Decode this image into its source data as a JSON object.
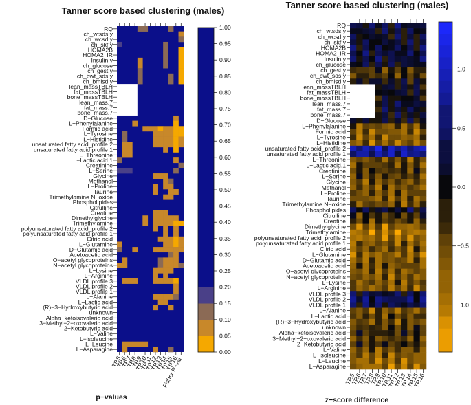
{
  "chart_data": [
    {
      "type": "heatmap",
      "title": "Tanner score based clustering (males)",
      "xlabel": "p−values",
      "columns": [
        "TP.5",
        "TP.6",
        "TP.7",
        "TP.8",
        "TP.9",
        "TP.10",
        "TP.11",
        "TP.12",
        "TP.13",
        "TP.14",
        "TP.15",
        "TP.16",
        "Fisher P−val."
      ],
      "rows": [
        "RQ",
        "ch_wtsds.y",
        "ch_wcsd.y",
        "ch_skf.y",
        "HOMA2B",
        "HOMA2_IR",
        "Insulin.y",
        "ch_glucose",
        "ch_gest.y",
        "ch_bwt_sds.y",
        "ch_bmisd.y",
        "lean_massTBLH",
        "fat_massTBLH",
        "bone_massTBLH",
        "lean_mass.7",
        "fat_mass.7",
        "bone_mass.7",
        "D−Glucose",
        "L−Phenylalanine",
        "Formic acid",
        "L−Tyrosine",
        "L−Histidine",
        "unsaturated fatty acid_profile 2",
        "unsaturated fatty acid profile 1",
        "L−Threonine",
        "L−Lactic acid.1",
        "Creatinine",
        "L−Serine",
        "Glycine",
        "Methanol",
        "L−Proline",
        "Taurine",
        "Trimethylamine N−oxide",
        "Phospholipides",
        "Citrulline",
        "Creatine",
        "Dimethylglycine",
        "Trimethylamine",
        "polyunsaturated fatty acid_profile 2",
        "polyunsaturated fatty acid profile 1",
        "Citric acid",
        "L−Glutamine",
        "D−Glutamic acid",
        "Acetoacetic acid",
        "O−acetyl glycoproteins",
        "N−acetyl glycoproteins",
        "L−Lysine",
        "L−Arginine",
        "VLDL profile 3",
        "VLDL profile 2",
        "VLDL profile 1",
        "L−Alanine",
        "L−Lactic acid",
        "(R)−3−Hydroxybutyric acid",
        "unknown",
        "Alpha−ketoisovaleric acid",
        "3−Methyl−2−oxovaleric acid",
        "2−Ketobutyric acid",
        "L−Valine",
        "L−isoleucine",
        "L−Leucine",
        "L−Asparagine"
      ],
      "color_scale": {
        "breaks": [
          0,
          0.05,
          0.1,
          0.15,
          0.2,
          1.0
        ],
        "colors": [
          "#f5a800",
          "#c8882a",
          "#8b6a55",
          "#4a4088",
          "#0b0f8a"
        ],
        "ticks": [
          "0.00",
          "0.05",
          "0.10",
          "0.15",
          "0.20",
          "0.25",
          "0.30",
          "0.35",
          "0.40",
          "0.45",
          "0.50",
          "0.55",
          "0.60",
          "0.65",
          "0.70",
          "0.75",
          "0.80",
          "0.85",
          "0.90",
          "0.95",
          "1.00"
        ]
      },
      "missing_block": {
        "rows": [
          "lean_massTBLH",
          "fat_massTBLH",
          "bone_massTBLH",
          "lean_mass.7",
          "fat_mass.7",
          "bone_mass.7"
        ],
        "columns": [
          "TP.5",
          "TP.6",
          "TP.7",
          "TP.8"
        ]
      },
      "significant_cells": [
        [
          0,
          "TP.9",
          0.12
        ],
        [
          0,
          "TP.10",
          0.12
        ],
        [
          0,
          "TP.15",
          0.12
        ],
        [
          1,
          "Fisher P−val.",
          0.08
        ],
        [
          2,
          "Fisher P−val.",
          0.12
        ],
        [
          3,
          "TP.5",
          0.15
        ],
        [
          3,
          "TP.14",
          0.12
        ],
        [
          4,
          "TP.14",
          0.1
        ],
        [
          4,
          "Fisher P−val.",
          0.04
        ],
        [
          5,
          "TP.14",
          0.1
        ],
        [
          5,
          "Fisher P−val.",
          0.04
        ],
        [
          6,
          "TP.9",
          0.08
        ],
        [
          6,
          "TP.14",
          0.1
        ],
        [
          6,
          "Fisher P−val.",
          0.04
        ],
        [
          7,
          "TP.9",
          0.08
        ],
        [
          7,
          "TP.14",
          0.1
        ],
        [
          7,
          "Fisher P−val.",
          0.04
        ],
        [
          8,
          "TP.9",
          0.12
        ],
        [
          8,
          "Fisher P−val.",
          0.04
        ],
        [
          9,
          "TP.9",
          0.12
        ],
        [
          9,
          "TP.15",
          0.12
        ],
        [
          9,
          "Fisher P−val.",
          0.04
        ],
        [
          10,
          "TP.9",
          0.12
        ],
        [
          10,
          "TP.15",
          0.12
        ],
        [
          10,
          "Fisher P−val.",
          0.04
        ],
        [
          17,
          "TP.16",
          0.08
        ],
        [
          18,
          "TP.8",
          0.08
        ],
        [
          18,
          "TP.16",
          0.04
        ],
        [
          19,
          "TP.10",
          0.08
        ],
        [
          19,
          "TP.11",
          0.08
        ],
        [
          19,
          "TP.12",
          0.08
        ],
        [
          19,
          "TP.13",
          0.04
        ],
        [
          19,
          "TP.14",
          0.08
        ],
        [
          19,
          "TP.15",
          0.08
        ],
        [
          19,
          "TP.16",
          0.04
        ],
        [
          19,
          "Fisher P−val.",
          0.04
        ],
        [
          20,
          "TP.6",
          0.12
        ],
        [
          20,
          "TP.12",
          0.08
        ],
        [
          20,
          "TP.13",
          0.08
        ],
        [
          20,
          "TP.14",
          0.08
        ],
        [
          20,
          "TP.15",
          0.08
        ],
        [
          20,
          "TP.16",
          0.04
        ],
        [
          20,
          "Fisher P−val.",
          0.04
        ],
        [
          21,
          "TP.6",
          0.12
        ],
        [
          21,
          "TP.12",
          0.08
        ],
        [
          21,
          "TP.13",
          0.08
        ],
        [
          21,
          "TP.14",
          0.08
        ],
        [
          21,
          "TP.15",
          0.08
        ],
        [
          21,
          "TP.16",
          0.04
        ],
        [
          21,
          "Fisher P−val.",
          0.08
        ],
        [
          22,
          "TP.6",
          0.08
        ],
        [
          22,
          "TP.7",
          0.08
        ],
        [
          22,
          "TP.12",
          0.08
        ],
        [
          22,
          "TP.13",
          0.08
        ],
        [
          22,
          "TP.14",
          0.08
        ],
        [
          22,
          "TP.15",
          0.08
        ],
        [
          22,
          "TP.16",
          0.04
        ],
        [
          22,
          "Fisher P−val.",
          0.08
        ],
        [
          23,
          "TP.6",
          0.08
        ],
        [
          23,
          "TP.7",
          0.08
        ],
        [
          23,
          "TP.14",
          0.08
        ],
        [
          23,
          "TP.16",
          0.04
        ],
        [
          24,
          "TP.6",
          0.08
        ],
        [
          24,
          "TP.7",
          0.08
        ],
        [
          25,
          "TP.5",
          0.12
        ],
        [
          25,
          "TP.16",
          0.08
        ],
        [
          26,
          "Fisher P−val.",
          0.12
        ],
        [
          27,
          "TP.5",
          0.15
        ],
        [
          27,
          "TP.6",
          0.15
        ],
        [
          27,
          "TP.7",
          0.15
        ],
        [
          27,
          "TP.16",
          0.12
        ],
        [
          28,
          "TP.12",
          0.08
        ],
        [
          28,
          "TP.13",
          0.08
        ],
        [
          28,
          "TP.14",
          0.08
        ],
        [
          29,
          "TP.14",
          0.08
        ],
        [
          29,
          "TP.15",
          0.12
        ],
        [
          30,
          "TP.12",
          0.08
        ],
        [
          30,
          "TP.14",
          0.08
        ],
        [
          30,
          "TP.15",
          0.08
        ],
        [
          31,
          "TP.12",
          0.08
        ],
        [
          31,
          "TP.15",
          0.08
        ],
        [
          31,
          "TP.16",
          0.08
        ],
        [
          32,
          "TP.14",
          0.08
        ],
        [
          32,
          "TP.15",
          0.08
        ],
        [
          35,
          "TP.12",
          0.08
        ],
        [
          35,
          "TP.13",
          0.08
        ],
        [
          35,
          "TP.14",
          0.08
        ],
        [
          36,
          "TP.10",
          0.08
        ],
        [
          36,
          "TP.12",
          0.08
        ],
        [
          36,
          "TP.13",
          0.08
        ],
        [
          36,
          "TP.14",
          0.08
        ],
        [
          36,
          "TP.15",
          0.08
        ],
        [
          36,
          "TP.16",
          0.08
        ],
        [
          37,
          "TP.10",
          0.08
        ],
        [
          37,
          "TP.12",
          0.08
        ],
        [
          37,
          "TP.13",
          0.08
        ],
        [
          37,
          "TP.14",
          0.08
        ],
        [
          37,
          "TP.15",
          0.08
        ],
        [
          37,
          "TP.16",
          0.04
        ],
        [
          37,
          "Fisher P−val.",
          0.04
        ],
        [
          38,
          "TP.12",
          0.08
        ],
        [
          38,
          "TP.14",
          0.08
        ],
        [
          38,
          "TP.16",
          0.08
        ],
        [
          39,
          "TP.14",
          0.08
        ],
        [
          39,
          "TP.16",
          0.08
        ],
        [
          40,
          "TP.13",
          0.08
        ],
        [
          40,
          "TP.14",
          0.08
        ],
        [
          40,
          "TP.15",
          0.08
        ],
        [
          40,
          "TP.16",
          0.04
        ],
        [
          40,
          "Fisher P−val.",
          0.08
        ],
        [
          41,
          "TP.5",
          0.08
        ],
        [
          41,
          "TP.14",
          0.08
        ],
        [
          41,
          "TP.15",
          0.08
        ],
        [
          41,
          "TP.16",
          0.04
        ],
        [
          41,
          "Fisher P−val.",
          0.08
        ],
        [
          42,
          "TP.5",
          0.12
        ],
        [
          42,
          "TP.8",
          0.08
        ],
        [
          42,
          "TP.12",
          0.08
        ],
        [
          42,
          "TP.13",
          0.08
        ],
        [
          42,
          "TP.14",
          0.08
        ],
        [
          42,
          "TP.15",
          0.08
        ],
        [
          42,
          "TP.16",
          0.08
        ],
        [
          42,
          "Fisher P−val.",
          0.08
        ],
        [
          43,
          "TP.15",
          0.12
        ],
        [
          43,
          "TP.16",
          0.08
        ],
        [
          44,
          "TP.6",
          0.08
        ],
        [
          44,
          "TP.13",
          0.12
        ],
        [
          44,
          "TP.14",
          0.08
        ],
        [
          44,
          "TP.15",
          0.08
        ],
        [
          44,
          "TP.16",
          0.08
        ],
        [
          45,
          "TP.5",
          0.08
        ],
        [
          45,
          "TP.6",
          0.08
        ],
        [
          45,
          "TP.13",
          0.12
        ],
        [
          45,
          "TP.14",
          0.08
        ],
        [
          45,
          "TP.15",
          0.08
        ],
        [
          45,
          "TP.16",
          0.08
        ],
        [
          45,
          "Fisher P−val.",
          0.12
        ],
        [
          46,
          "TP.12",
          0.08
        ],
        [
          46,
          "TP.13",
          0.08
        ],
        [
          46,
          "TP.14",
          0.08
        ],
        [
          46,
          "TP.15",
          0.08
        ],
        [
          47,
          "TP.12",
          0.08
        ],
        [
          47,
          "TP.14",
          0.08
        ],
        [
          48,
          "TP.6",
          0.08
        ],
        [
          48,
          "TP.7",
          0.08
        ],
        [
          48,
          "TP.8",
          0.08
        ],
        [
          48,
          "TP.12",
          0.08
        ],
        [
          48,
          "TP.13",
          0.08
        ],
        [
          48,
          "TP.14",
          0.08
        ],
        [
          48,
          "TP.15",
          0.08
        ],
        [
          48,
          "TP.16",
          0.04
        ],
        [
          49,
          "TP.16",
          0.08
        ],
        [
          50,
          "TP.16",
          0.08
        ],
        [
          51,
          "TP.12",
          0.08
        ],
        [
          51,
          "TP.13",
          0.08
        ],
        [
          51,
          "TP.14",
          0.08
        ],
        [
          51,
          "TP.15",
          0.08
        ],
        [
          51,
          "TP.16",
          0.12
        ],
        [
          52,
          "TP.13",
          0.08
        ],
        [
          52,
          "TP.14",
          0.08
        ],
        [
          53,
          "TP.12",
          0.08
        ],
        [
          53,
          "TP.15",
          0.08
        ],
        [
          60,
          "TP.6",
          0.08
        ],
        [
          60,
          "TP.7",
          0.08
        ],
        [
          60,
          "TP.8",
          0.08
        ],
        [
          60,
          "TP.9",
          0.08
        ],
        [
          60,
          "TP.10",
          0.08
        ],
        [
          61,
          "TP.6",
          0.08
        ],
        [
          61,
          "TP.12",
          0.08
        ],
        [
          61,
          "TP.15",
          0.12
        ]
      ]
    },
    {
      "type": "heatmap",
      "title": "Tanner score based clustering (males)",
      "xlabel": "z−score difference",
      "columns": [
        "TP.5",
        "TP.6",
        "TP.7",
        "TP.8",
        "TP.9",
        "TP.10",
        "TP.11",
        "TP.12",
        "TP.13",
        "TP.14",
        "TP.15",
        "TP.16"
      ],
      "color_scale": {
        "min": -1.4,
        "max": 1.4,
        "ticks": [
          1.0,
          0.5,
          0.0,
          -0.5,
          -1.0
        ],
        "tick_labels": [
          "1.0",
          "0.5",
          "0.0",
          "−0.5",
          "−1.0"
        ]
      },
      "missing_block": {
        "rows": [
          "lean_massTBLH",
          "fat_massTBLH",
          "bone_massTBLH",
          "lean_mass.7",
          "fat_mass.7",
          "bone_mass.7"
        ],
        "columns": [
          "TP.5",
          "TP.6",
          "TP.7",
          "TP.8"
        ]
      },
      "rows_ref": "same row labels as the p−values heatmap",
      "row_mean_zscore": [
        0.25,
        0.15,
        0.1,
        0.15,
        0.2,
        0.25,
        0.25,
        0.15,
        -0.35,
        -0.35,
        0.0,
        0.1,
        0.1,
        0.0,
        0.2,
        0.15,
        0.1,
        0.05,
        -0.6,
        -0.7,
        -0.7,
        -0.75,
        0.85,
        0.75,
        -0.55,
        -0.45,
        -0.35,
        -0.4,
        -0.55,
        -0.6,
        -0.55,
        -0.65,
        -0.55,
        0.2,
        -0.3,
        -0.4,
        -0.8,
        -0.95,
        -0.85,
        -0.65,
        -0.6,
        -0.75,
        -0.65,
        -0.55,
        -0.65,
        -0.65,
        -0.6,
        -0.7,
        0.25,
        0.45,
        0.3,
        -0.65,
        -0.45,
        -0.55,
        -0.35,
        -0.2,
        -0.45,
        -0.25,
        -0.55,
        -0.7,
        -0.8,
        -0.85
      ]
    }
  ]
}
